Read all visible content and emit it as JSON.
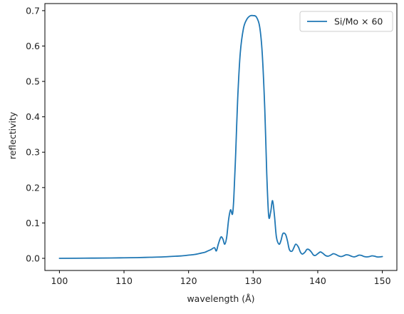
{
  "chart_data": {
    "type": "line",
    "xlabel": "wavelength (Å)",
    "ylabel": "reflectivity",
    "xlim": [
      97.75,
      152.25
    ],
    "ylim": [
      -0.0343,
      0.72
    ],
    "xticks": [
      100,
      110,
      120,
      130,
      140,
      150
    ],
    "yticks": [
      0.0,
      0.1,
      0.2,
      0.3,
      0.4,
      0.5,
      0.6,
      0.7
    ],
    "xtick_labels": [
      "100",
      "110",
      "120",
      "130",
      "140",
      "150"
    ],
    "ytick_labels": [
      "0.0",
      "0.1",
      "0.2",
      "0.3",
      "0.4",
      "0.5",
      "0.6",
      "0.7"
    ],
    "grid": false,
    "legend_position": "top-right",
    "series": [
      {
        "name": "Si/Mo × 60",
        "color": "#1f77b4",
        "x": [
          100,
          104,
          108,
          110,
          112,
          114,
          116,
          118,
          119,
          120,
          121,
          122,
          122.5,
          123,
          123.5,
          124,
          124.3,
          124.6,
          125,
          125.3,
          125.6,
          125.9,
          126.2,
          126.5,
          126.8,
          127,
          127.3,
          127.6,
          128,
          128.5,
          129,
          129.5,
          130,
          130.5,
          131,
          131.4,
          131.8,
          132.1,
          132.4,
          132.7,
          133,
          133.3,
          133.6,
          134,
          134.3,
          134.6,
          135,
          135.3,
          135.6,
          136,
          136.3,
          136.6,
          137,
          137.3,
          137.6,
          138,
          138.3,
          138.6,
          139,
          139.3,
          139.6,
          140,
          140.4,
          140.8,
          141.2,
          141.6,
          142,
          142.4,
          142.8,
          143.2,
          143.6,
          144,
          144.4,
          144.8,
          145.2,
          145.6,
          146,
          146.4,
          146.8,
          147.2,
          147.6,
          148,
          148.4,
          148.8,
          149.2,
          149.6,
          150
        ],
        "y": [
          0.0,
          0.0005,
          0.001,
          0.0015,
          0.002,
          0.003,
          0.004,
          0.006,
          0.007,
          0.009,
          0.011,
          0.015,
          0.017,
          0.021,
          0.025,
          0.03,
          0.021,
          0.04,
          0.06,
          0.055,
          0.04,
          0.06,
          0.11,
          0.137,
          0.125,
          0.17,
          0.3,
          0.45,
          0.58,
          0.65,
          0.675,
          0.685,
          0.686,
          0.682,
          0.655,
          0.58,
          0.42,
          0.24,
          0.12,
          0.13,
          0.163,
          0.12,
          0.06,
          0.04,
          0.05,
          0.07,
          0.068,
          0.05,
          0.025,
          0.02,
          0.03,
          0.04,
          0.032,
          0.018,
          0.012,
          0.017,
          0.025,
          0.025,
          0.018,
          0.01,
          0.008,
          0.013,
          0.018,
          0.014,
          0.008,
          0.006,
          0.009,
          0.013,
          0.011,
          0.007,
          0.005,
          0.007,
          0.01,
          0.009,
          0.006,
          0.004,
          0.006,
          0.009,
          0.008,
          0.005,
          0.004,
          0.005,
          0.007,
          0.006,
          0.004,
          0.004,
          0.005
        ]
      }
    ]
  }
}
